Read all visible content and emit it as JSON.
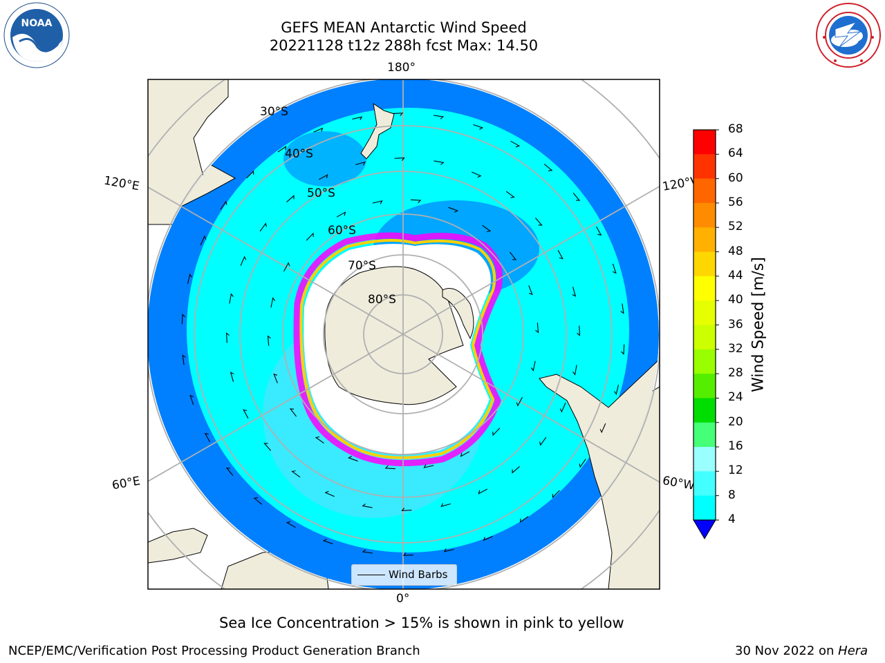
{
  "title": {
    "line1": "GEFS MEAN Antarctic Wind Speed",
    "line2": "20221128 t12z 288h fcst   Max: 14.50"
  },
  "logos": {
    "left_name": "NOAA",
    "right_name": "NATIONAL WEATHER SERVICE"
  },
  "map": {
    "projection": "south-polar-stereographic",
    "longitude_labels": {
      "top": "180°",
      "bottom": "0°",
      "upper_left": "120°E",
      "upper_right": "120°W",
      "lower_left": "60°E",
      "lower_right": "60°W"
    },
    "latitude_labels": [
      "30°S",
      "40°S",
      "50°S",
      "60°S",
      "70°S",
      "80°S"
    ],
    "legend_label": "Wind Barbs",
    "colors": {
      "land": "#efecdc",
      "wind_4_8": "#0080ff",
      "wind_8_12": "#00ffff",
      "wind_12_16": "#40ffff",
      "sea_ice_low": "#ff00ff",
      "sea_ice_high": "#ffd700",
      "grid": "#b0b0b0"
    }
  },
  "colorbar": {
    "label": "Wind Speed [m/s]",
    "ticks": [
      "68",
      "64",
      "60",
      "56",
      "52",
      "48",
      "44",
      "40",
      "36",
      "32",
      "28",
      "24",
      "20",
      "16",
      "12",
      "8",
      "4"
    ],
    "colors": [
      "#ff0000",
      "#ff3300",
      "#ff6600",
      "#ff8c00",
      "#ffb000",
      "#ffd700",
      "#ffff00",
      "#e6ff00",
      "#ccff00",
      "#99ff00",
      "#55ee00",
      "#00dd00",
      "#44ff77",
      "#99ffff",
      "#44ffff",
      "#00ffff",
      "#0077ff"
    ],
    "extend_color": "#0000ff"
  },
  "caption": "Sea Ice Concentration > 15% is shown in pink to yellow",
  "footer": {
    "left": "NCEP/EMC/Verification Post Processing Product Generation Branch",
    "right_prefix": "30 Nov 2022 on ",
    "right_machine": "Hera"
  }
}
